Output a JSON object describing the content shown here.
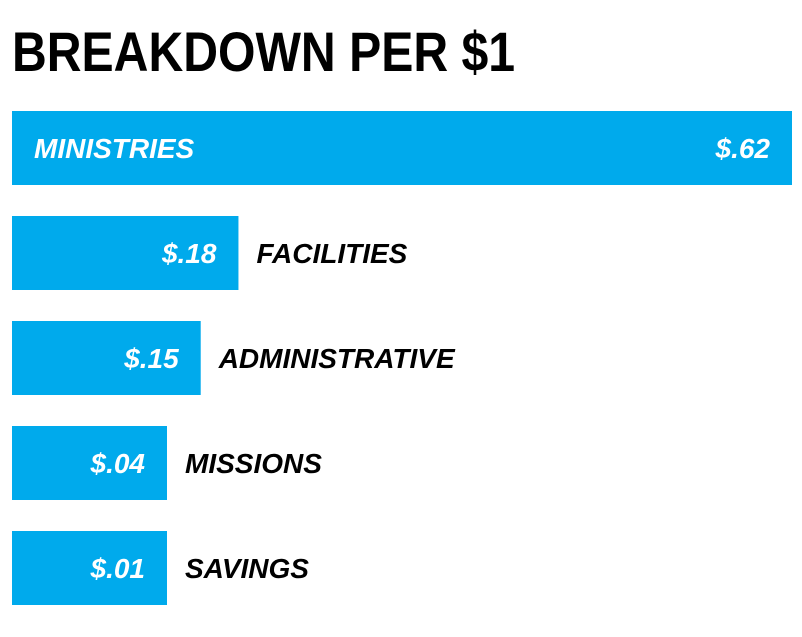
{
  "chart_data": {
    "type": "bar",
    "orientation": "horizontal",
    "title": "BREAKDOWN PER $1",
    "categories": [
      "MINISTRIES",
      "FACILITIES",
      "ADMINISTRATIVE",
      "MISSIONS",
      "SAVINGS"
    ],
    "values": [
      0.62,
      0.18,
      0.15,
      0.04,
      0.01
    ],
    "value_labels": [
      "$.62",
      "$.18",
      "$.15",
      "$.04",
      "$.01"
    ],
    "xlabel": "",
    "ylabel": "",
    "grid": false,
    "legend": "none",
    "bar_color": "#00aaec"
  }
}
